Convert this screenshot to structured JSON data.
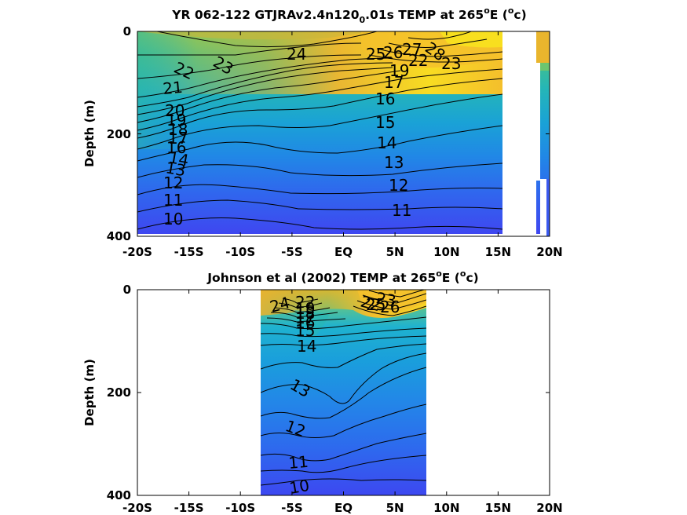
{
  "chart_data": [
    {
      "type": "contour",
      "title": {
        "part1": "YR 062-122 GTJRAv2.4n120",
        "subscript": "0",
        "part2": ".01s TEMP at 265",
        "deg1": "o",
        "part3": "E (",
        "deg2": "o",
        "part4": "c)"
      },
      "ylabel": "Depth (m)",
      "x_ticks": [
        "-20S",
        "-15S",
        "-10S",
        "-5S",
        "EQ",
        "5N",
        "10N",
        "15N",
        "20N"
      ],
      "y_ticks": [
        "0",
        "200",
        "400"
      ],
      "xlim": [
        -20,
        20
      ],
      "ylim": [
        400,
        0
      ],
      "data_extent_lat": [
        -20,
        15.5
      ],
      "contour_labels": [
        "23",
        "22",
        "21",
        "20",
        "19",
        "18",
        "17",
        "16",
        "15",
        "14",
        "13",
        "12",
        "11",
        "10",
        "24",
        "16",
        "15",
        "14",
        "13",
        "12",
        "11",
        "17",
        "19",
        "22",
        "23",
        "25",
        "26",
        "27",
        "28"
      ],
      "contour_levels": [
        10,
        11,
        12,
        13,
        14,
        15,
        16,
        17,
        18,
        19,
        20,
        21,
        22,
        23,
        24,
        25,
        26,
        27,
        28
      ],
      "colormap": [
        "#3d4df0",
        "#2b87f2",
        "#1eb4d2",
        "#2fc6a6",
        "#7fcb5b",
        "#c0bb34",
        "#f2c02b",
        "#f8e21e"
      ]
    },
    {
      "type": "contour",
      "title": {
        "part1": "Johnson et al (2002) TEMP at 265",
        "deg1": "o",
        "part3": "E (",
        "deg2": "o",
        "part4": "c)"
      },
      "ylabel": "Depth (m)",
      "x_ticks": [
        "-20S",
        "-15S",
        "-10S",
        "-5S",
        "EQ",
        "5N",
        "10N",
        "15N",
        "20N"
      ],
      "y_ticks": [
        "0",
        "200",
        "400"
      ],
      "xlim": [
        -20,
        20
      ],
      "ylim": [
        400,
        0
      ],
      "data_extent_lat": [
        -8,
        8
      ],
      "contour_labels": [
        "24",
        "22",
        "19",
        "18",
        "17",
        "16",
        "15",
        "14",
        "13",
        "12",
        "11",
        "10",
        "22",
        "23",
        "25",
        "26"
      ],
      "contour_levels": [
        10,
        11,
        12,
        13,
        14,
        15,
        16,
        17,
        18,
        19,
        20,
        21,
        22,
        23,
        24,
        25,
        26
      ],
      "colormap": [
        "#3d4df0",
        "#2b87f2",
        "#1eb4d2",
        "#2fc6a6",
        "#7fcb5b",
        "#c0bb34",
        "#f2c02b",
        "#f8e21e"
      ]
    }
  ]
}
